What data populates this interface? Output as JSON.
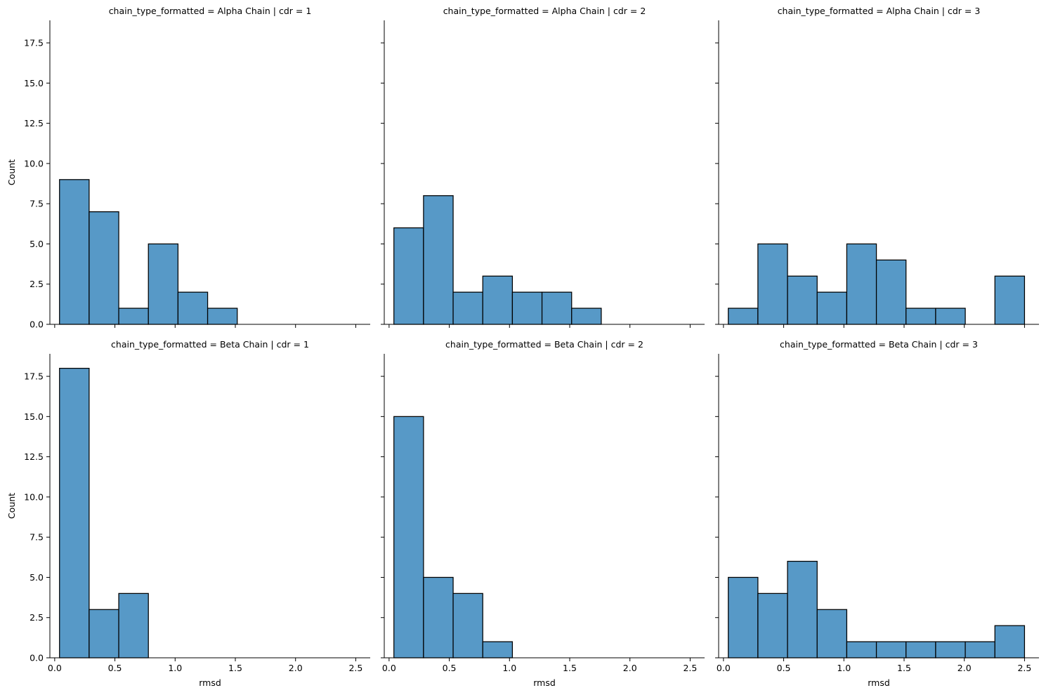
{
  "chart_data": {
    "type": "bar",
    "style": {
      "bar_fill": "#5799c7",
      "bar_stroke": "#000000",
      "axis_color": "#000000",
      "background": "#ffffff",
      "grid": false,
      "legend": "none"
    },
    "bin_edges": [
      0.04,
      0.286,
      0.532,
      0.778,
      1.024,
      1.27,
      1.516,
      1.762,
      2.008,
      2.254,
      2.5
    ],
    "xlim": [
      -0.04,
      2.62
    ],
    "ylim": [
      0,
      18.9
    ],
    "x_ticks": [
      {
        "value": 0.0,
        "label": "0.0"
      },
      {
        "value": 0.5,
        "label": "0.5"
      },
      {
        "value": 1.0,
        "label": "1.0"
      },
      {
        "value": 1.5,
        "label": "1.5"
      },
      {
        "value": 2.0,
        "label": "2.0"
      },
      {
        "value": 2.5,
        "label": "2.5"
      }
    ],
    "y_ticks": [
      {
        "value": 0.0,
        "label": "0.0"
      },
      {
        "value": 2.5,
        "label": "2.5"
      },
      {
        "value": 5.0,
        "label": "5.0"
      },
      {
        "value": 7.5,
        "label": "7.5"
      },
      {
        "value": 10.0,
        "label": "10.0"
      },
      {
        "value": 12.5,
        "label": "12.5"
      },
      {
        "value": 15.0,
        "label": "15.0"
      },
      {
        "value": 17.5,
        "label": "17.5"
      }
    ],
    "xlabel": "rmsd",
    "ylabel": "Count",
    "panels": [
      {
        "row": 0,
        "col": 0,
        "title": "chain_type_formatted = Alpha Chain | cdr = 1",
        "counts": [
          9,
          7,
          1,
          5,
          2,
          1,
          0,
          0,
          0,
          0
        ]
      },
      {
        "row": 0,
        "col": 1,
        "title": "chain_type_formatted = Alpha Chain | cdr = 2",
        "counts": [
          6,
          8,
          2,
          3,
          2,
          2,
          1,
          0,
          0,
          0
        ]
      },
      {
        "row": 0,
        "col": 2,
        "title": "chain_type_formatted = Alpha Chain | cdr = 3",
        "counts": [
          1,
          5,
          3,
          2,
          5,
          4,
          1,
          1,
          0,
          3
        ]
      },
      {
        "row": 1,
        "col": 0,
        "title": "chain_type_formatted = Beta Chain | cdr = 1",
        "counts": [
          18,
          3,
          4,
          0,
          0,
          0,
          0,
          0,
          0,
          0
        ]
      },
      {
        "row": 1,
        "col": 1,
        "title": "chain_type_formatted = Beta Chain | cdr = 2",
        "counts": [
          15,
          5,
          4,
          1,
          0,
          0,
          0,
          0,
          0,
          0
        ]
      },
      {
        "row": 1,
        "col": 2,
        "title": "chain_type_formatted = Beta Chain | cdr = 3",
        "counts": [
          5,
          4,
          6,
          3,
          1,
          1,
          1,
          1,
          1,
          2
        ]
      }
    ]
  }
}
